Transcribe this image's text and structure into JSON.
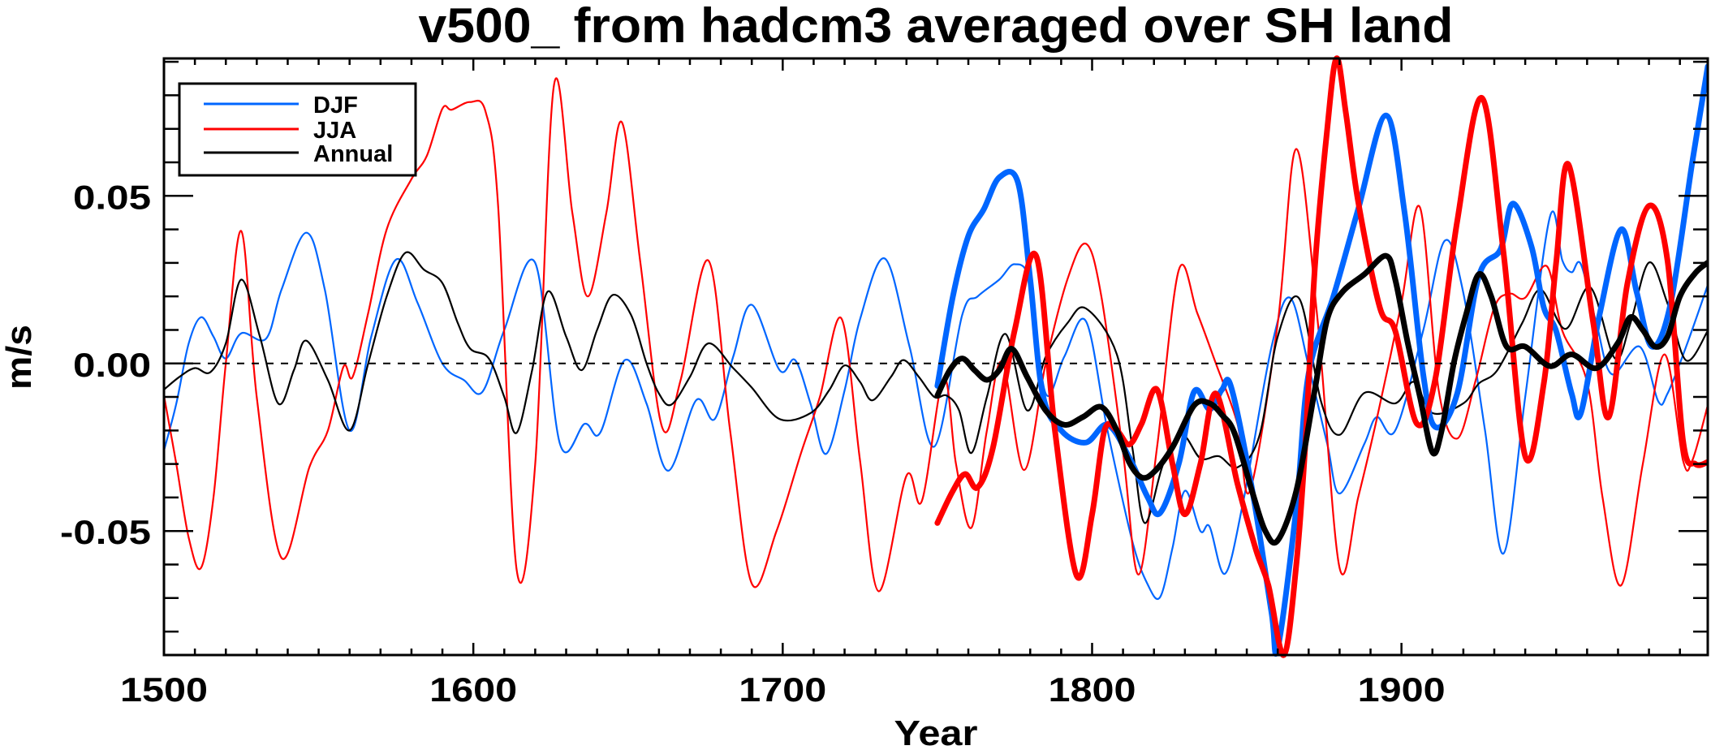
{
  "chart_data": {
    "type": "line",
    "title": "v500_ from hadcm3 averaged over SH land",
    "xlabel": "Year",
    "ylabel": "m/s",
    "xlim": [
      1500,
      1999
    ],
    "ylim": [
      -0.087,
      0.091
    ],
    "x_ticks": [
      1500,
      1600,
      1700,
      1800,
      1900
    ],
    "x_tick_labels": [
      "1500",
      "1600",
      "1700",
      "1800",
      "1900"
    ],
    "x_minor_step": 10,
    "y_ticks": [
      -0.05,
      0.0,
      0.05
    ],
    "y_tick_labels": [
      "-0.05",
      "0.00",
      "0.05"
    ],
    "y_minor_step": 0.01,
    "zero_line": {
      "value": 0.0,
      "style": "dashed"
    },
    "grid": false,
    "legend": {
      "position": "top-left",
      "entries": [
        {
          "label": "DJF",
          "color": "#0066ff"
        },
        {
          "label": "JJA",
          "color": "#ff0000"
        },
        {
          "label": "Annual",
          "color": "#000000"
        }
      ]
    },
    "series": [
      {
        "name": "DJF",
        "color": "#0066ff",
        "weight": "thin",
        "x": [
          1500,
          1504,
          1508,
          1512,
          1516,
          1520,
          1525,
          1533,
          1538,
          1546,
          1552,
          1560,
          1567,
          1575,
          1582,
          1590,
          1597,
          1603,
          1610,
          1620,
          1628,
          1636,
          1641,
          1649,
          1656,
          1663,
          1672,
          1678,
          1684,
          1690,
          1699,
          1704,
          1709,
          1714,
          1720,
          1725,
          1733,
          1741,
          1749,
          1758,
          1763,
          1770,
          1775,
          1780,
          1785,
          1791,
          1798,
          1805,
          1813,
          1818,
          1822,
          1826,
          1830,
          1835,
          1838,
          1843,
          1849,
          1858,
          1864,
          1870,
          1876,
          1880,
          1888,
          1892,
          1898,
          1907,
          1914,
          1920,
          1927,
          1933,
          1940,
          1948,
          1952,
          1955,
          1958,
          1963,
          1968,
          1977,
          1983,
          1986,
          1992,
          1999
        ],
        "y": [
          -0.026,
          -0.012,
          0.006,
          0.0138,
          0.008,
          0.0015,
          0.009,
          0.0074,
          0.022,
          0.039,
          0.022,
          -0.02,
          0.008,
          0.031,
          0.018,
          0.0,
          -0.005,
          -0.0084,
          0.01,
          0.03,
          -0.024,
          -0.018,
          -0.0207,
          0.001,
          -0.012,
          -0.032,
          -0.011,
          -0.0166,
          0.002,
          0.0175,
          -0.002,
          0.001,
          -0.012,
          -0.027,
          -0.008,
          0.0132,
          0.0313,
          0.005,
          -0.0248,
          0.0144,
          0.02,
          0.025,
          0.0296,
          0.024,
          -0.009,
          0.002,
          0.0126,
          -0.02,
          -0.053,
          -0.066,
          -0.0697,
          -0.055,
          -0.038,
          -0.05,
          -0.0487,
          -0.0627,
          -0.0405,
          0.005,
          0.0196,
          -0.0008,
          -0.024,
          -0.0388,
          -0.024,
          -0.016,
          -0.02,
          0.0097,
          0.0366,
          0.021,
          -0.02,
          -0.0567,
          -0.01,
          0.0438,
          0.0307,
          0.0272,
          0.0296,
          0.012,
          -0.0032,
          0.005,
          -0.0113,
          -0.009,
          0.005,
          0.0234
        ]
      },
      {
        "name": "JJA",
        "color": "#ff0000",
        "weight": "thin",
        "x": [
          1500,
          1504,
          1508,
          1512,
          1516,
          1520,
          1525,
          1530,
          1538,
          1547,
          1553,
          1558,
          1561,
          1566,
          1572,
          1580,
          1585,
          1590,
          1593,
          1599,
          1604,
          1608,
          1614,
          1620,
          1626,
          1632,
          1637,
          1643,
          1648,
          1654,
          1661,
          1667,
          1676,
          1683,
          1690,
          1698,
          1706,
          1712,
          1719,
          1725,
          1731,
          1740,
          1745,
          1752,
          1756,
          1761,
          1766,
          1771,
          1778,
          1785,
          1792,
          1798,
          1803,
          1810,
          1815,
          1821,
          1828,
          1834,
          1840,
          1847,
          1851,
          1860,
          1866,
          1873,
          1880,
          1886,
          1892,
          1900,
          1906,
          1912,
          1918,
          1924,
          1930,
          1935,
          1940,
          1947,
          1952,
          1960,
          1965,
          1971,
          1978,
          1985,
          1991,
          1994,
          1999
        ],
        "y": [
          -0.0096,
          -0.03,
          -0.052,
          -0.061,
          -0.04,
          0.0,
          0.0395,
          -0.01,
          -0.058,
          -0.031,
          -0.02,
          -0.001,
          -0.004,
          0.015,
          0.04,
          0.055,
          0.062,
          0.076,
          0.0757,
          0.078,
          0.075,
          0.047,
          -0.0615,
          -0.03,
          0.0827,
          0.045,
          0.02,
          0.045,
          0.072,
          0.03,
          -0.019,
          -0.005,
          0.0307,
          -0.02,
          -0.0657,
          -0.05,
          -0.0265,
          -0.01,
          0.0134,
          -0.029,
          -0.068,
          -0.0335,
          -0.041,
          -0.0043,
          -0.03,
          -0.049,
          -0.02,
          0.0004,
          -0.0318,
          0.0,
          0.025,
          0.0357,
          0.02,
          -0.0265,
          -0.063,
          -0.025,
          0.0278,
          0.015,
          0.0,
          -0.018,
          -0.038,
          0.012,
          0.064,
          0.012,
          -0.061,
          -0.04,
          -0.0166,
          0.018,
          0.0465,
          -0.0078,
          -0.0224,
          -0.005,
          0.0167,
          0.0208,
          0.0196,
          0.029,
          0.0097,
          -0.0055,
          -0.04,
          -0.0662,
          -0.03,
          0.0027,
          -0.0289,
          -0.029,
          -0.0125
        ]
      },
      {
        "name": "Annual",
        "color": "#000000",
        "weight": "thin",
        "x": [
          1500,
          1505,
          1510,
          1515,
          1520,
          1525,
          1531,
          1537,
          1542,
          1546,
          1553,
          1560,
          1566,
          1572,
          1578,
          1584,
          1590,
          1595,
          1599,
          1605,
          1610,
          1614,
          1619,
          1624,
          1630,
          1635,
          1640,
          1645,
          1651,
          1656,
          1660,
          1664,
          1670,
          1676,
          1684,
          1690,
          1699,
          1709,
          1715,
          1720,
          1725,
          1729,
          1735,
          1739,
          1744,
          1749,
          1753,
          1757,
          1761,
          1766,
          1772,
          1779,
          1785,
          1792,
          1798,
          1808,
          1813,
          1817,
          1823,
          1829,
          1835,
          1841,
          1847,
          1854,
          1860,
          1867,
          1874,
          1880,
          1888,
          1898,
          1904,
          1910,
          1920,
          1925,
          1931,
          1939,
          1945,
          1953,
          1961,
          1969,
          1974,
          1980,
          1986,
          1992,
          1999
        ],
        "y": [
          -0.0078,
          -0.004,
          -0.0014,
          -0.0026,
          0.006,
          0.025,
          0.008,
          -0.012,
          -0.002,
          0.0068,
          -0.005,
          -0.02,
          0.0,
          0.02,
          0.033,
          0.028,
          0.024,
          0.012,
          0.0044,
          0.0015,
          -0.01,
          -0.0207,
          -0.002,
          0.0214,
          0.008,
          -0.002,
          0.01,
          0.0204,
          0.0144,
          0.0,
          -0.009,
          -0.0123,
          -0.004,
          0.006,
          -0.0014,
          -0.0072,
          -0.0166,
          -0.0148,
          -0.008,
          -0.0006,
          -0.0055,
          -0.011,
          -0.004,
          0.001,
          -0.004,
          -0.01,
          -0.0096,
          -0.014,
          -0.0267,
          -0.01,
          0.0088,
          -0.014,
          0.002,
          0.012,
          0.0164,
          0.0027,
          -0.025,
          -0.0476,
          -0.03,
          -0.0213,
          -0.0283,
          -0.0277,
          -0.031,
          -0.0218,
          0.008,
          0.0193,
          -0.0113,
          -0.0213,
          -0.0088,
          -0.0119,
          -0.0055,
          -0.0148,
          -0.0119,
          -0.006,
          -0.002,
          0.012,
          0.022,
          0.0103,
          0.0227,
          0.0015,
          0.012,
          0.0301,
          0.0179,
          0.0009,
          0.0097
        ]
      },
      {
        "name": "DJF (from 1750)",
        "color": "#0066ff",
        "weight": "thick",
        "x": [
          1750,
          1755,
          1760,
          1765,
          1770,
          1776,
          1780,
          1784,
          1790,
          1798,
          1805,
          1812,
          1818,
          1822,
          1828,
          1833,
          1838,
          1842,
          1845,
          1852,
          1858,
          1860,
          1866,
          1870,
          1878,
          1886,
          1895,
          1901,
          1907,
          1911,
          1918,
          1925,
          1932,
          1936,
          1942,
          1946,
          1950,
          1955,
          1958,
          1964,
          1971,
          1976,
          1981,
          1987,
          1994,
          1999
        ],
        "y": [
          -0.0067,
          0.02,
          0.038,
          0.046,
          0.0555,
          0.0541,
          0.025,
          -0.009,
          -0.02,
          -0.0236,
          -0.0183,
          -0.028,
          -0.04,
          -0.0446,
          -0.03,
          -0.0084,
          -0.0137,
          -0.0078,
          -0.0072,
          -0.039,
          -0.0744,
          -0.085,
          -0.043,
          -0.003,
          0.02,
          0.046,
          0.074,
          0.045,
          -0.003,
          -0.019,
          -0.009,
          0.026,
          0.034,
          0.0477,
          0.035,
          0.0167,
          0.0097,
          -0.009,
          -0.0148,
          0.0144,
          0.04,
          0.0214,
          0.005,
          0.0179,
          0.06,
          0.0886
        ]
      },
      {
        "name": "JJA (from 1750)",
        "color": "#ff0000",
        "weight": "thick",
        "x": [
          1750,
          1755,
          1759,
          1763,
          1768,
          1775,
          1782,
          1788,
          1795,
          1800,
          1804,
          1808,
          1812,
          1816,
          1821,
          1826,
          1830,
          1835,
          1840,
          1847,
          1853,
          1857,
          1862,
          1866,
          1869,
          1872,
          1876,
          1879,
          1882,
          1886,
          1893,
          1898,
          1905,
          1911,
          1918,
          1926,
          1933,
          1940,
          1946,
          1950,
          1954,
          1962,
          1967,
          1973,
          1980,
          1986,
          1991,
          1995,
          1999
        ],
        "y": [
          -0.0476,
          -0.038,
          -0.033,
          -0.037,
          -0.025,
          0.01,
          0.0319,
          -0.02,
          -0.0633,
          -0.045,
          -0.02,
          -0.02,
          -0.0242,
          -0.018,
          -0.0078,
          -0.03,
          -0.045,
          -0.03,
          -0.009,
          -0.0359,
          -0.0557,
          -0.0662,
          -0.087,
          -0.06,
          -0.023,
          0.0284,
          0.07,
          0.091,
          0.075,
          0.0483,
          0.0167,
          0.0097,
          -0.018,
          -0.0043,
          0.0424,
          0.0792,
          0.033,
          -0.0277,
          -0.006,
          0.03,
          0.0593,
          0.012,
          -0.016,
          0.0237,
          0.047,
          0.0307,
          -0.023,
          -0.03,
          -0.0294
        ]
      },
      {
        "name": "Annual (from 1750)",
        "color": "#000000",
        "weight": "thick",
        "x": [
          1750,
          1754,
          1758,
          1762,
          1766,
          1770,
          1774,
          1779,
          1785,
          1791,
          1797,
          1803,
          1808,
          1812,
          1816,
          1820,
          1826,
          1833,
          1838,
          1842,
          1846,
          1852,
          1856,
          1860,
          1866,
          1872,
          1876,
          1881,
          1888,
          1895,
          1898,
          1902,
          1906,
          1910,
          1913,
          1917,
          1921,
          1925,
          1929,
          1934,
          1940,
          1948,
          1955,
          1963,
          1970,
          1974,
          1978,
          1982,
          1986,
          1990,
          1995,
          1999
        ],
        "y": [
          -0.0096,
          -0.002,
          0.0015,
          -0.002,
          -0.0049,
          -0.002,
          0.0044,
          -0.004,
          -0.014,
          -0.0183,
          -0.016,
          -0.013,
          -0.02,
          -0.0295,
          -0.034,
          -0.0324,
          -0.025,
          -0.0125,
          -0.0119,
          -0.0154,
          -0.0207,
          -0.039,
          -0.05,
          -0.0528,
          -0.038,
          -0.0078,
          0.0132,
          0.0214,
          0.0266,
          0.0321,
          0.025,
          0.0062,
          -0.01,
          -0.0265,
          -0.02,
          0.0004,
          0.015,
          0.0266,
          0.02,
          0.005,
          0.005,
          -0.0008,
          0.0027,
          -0.0014,
          0.0062,
          0.0138,
          0.01,
          0.005,
          0.008,
          0.02,
          0.027,
          0.0301
        ]
      }
    ]
  }
}
